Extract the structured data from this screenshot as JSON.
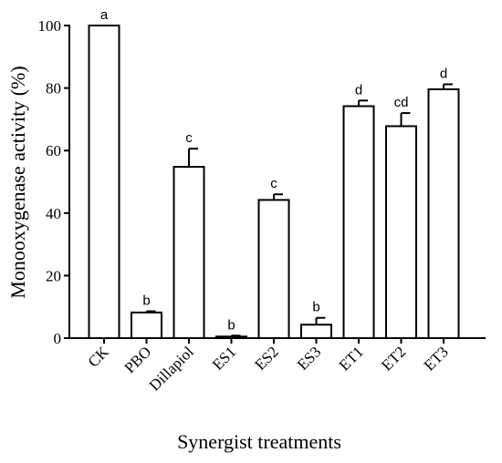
{
  "chart_data": {
    "type": "bar",
    "title": "",
    "xlabel": "Synergist treatments",
    "ylabel": "Monooxygenase activity (%)",
    "ylim": [
      0,
      100
    ],
    "yticks": [
      "0",
      "20",
      "40",
      "60",
      "80",
      "100"
    ],
    "categories": [
      "CK",
      "PBO",
      "Dillapiol",
      "ES1",
      "ES2",
      "ES3",
      "ET1",
      "ET2",
      "ET3"
    ],
    "values": [
      100,
      8.2,
      54.8,
      0.5,
      44.2,
      4.3,
      74.2,
      67.8,
      79.6
    ],
    "errors": [
      0,
      0.4,
      5.8,
      0.3,
      1.8,
      2.2,
      1.8,
      4.2,
      1.6
    ],
    "significance": [
      "a",
      "b",
      "c",
      "b",
      "c",
      "b",
      "d",
      "cd",
      "d"
    ],
    "bar_fill": "#ffffff",
    "bar_stroke": "#000000",
    "grid": false,
    "legend": "none"
  }
}
